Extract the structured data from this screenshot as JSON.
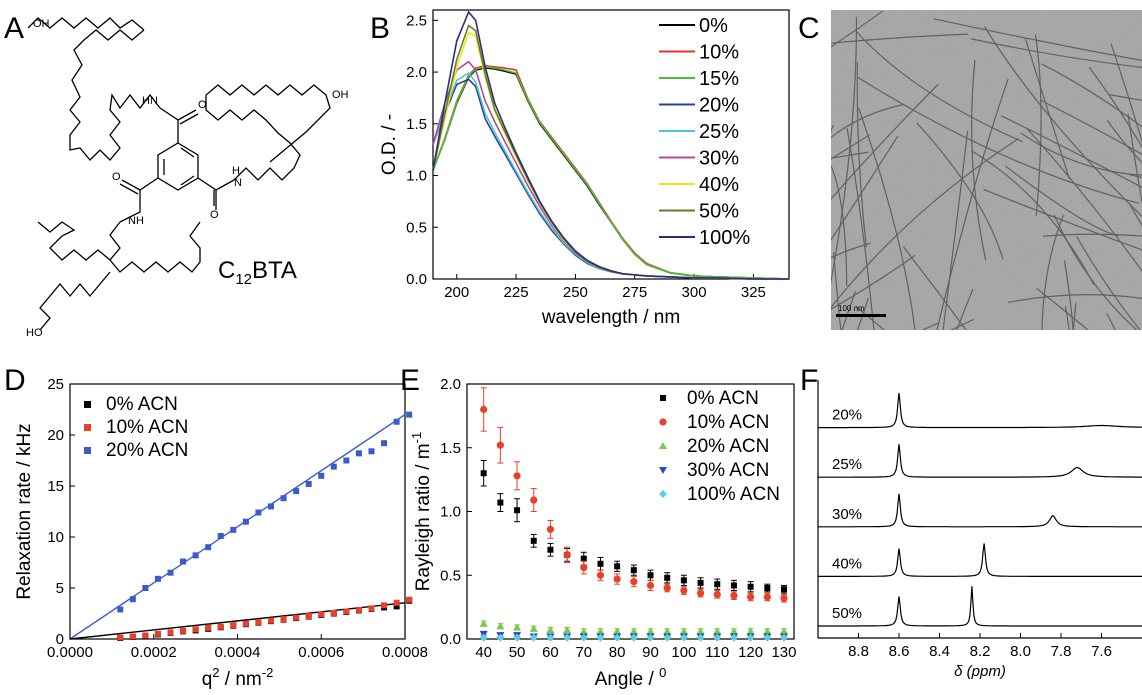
{
  "panels": {
    "A": {
      "letter": "A",
      "compound_name": "C",
      "compound_sub": "12",
      "compound_suffix": "BTA",
      "atom_labels": {
        "oh1": "OH",
        "oh2": "OH",
        "ho": "HO",
        "hn": "HN",
        "nh": "NH",
        "h": "H",
        "n": "N",
        "o": "O"
      }
    },
    "B": {
      "letter": "B"
    },
    "C": {
      "letter": "C",
      "scale_bar": "100 nm"
    },
    "D": {
      "letter": "D"
    },
    "E": {
      "letter": "E"
    },
    "F": {
      "letter": "F"
    }
  },
  "colors": {
    "black": "#000000",
    "red": "#e8302a",
    "green": "#4cbf3a",
    "blue": "#2d3f9e",
    "cyan": "#48c8d8",
    "magenta": "#b04a9e",
    "yellow": "#e8e820",
    "olive": "#6b7a2a",
    "navy": "#2a3080",
    "scatter_blue": "#3a5bc8",
    "scatter_red": "#e8402a",
    "scatter_green": "#7ac84a",
    "scatter_navy": "#2a4ab8",
    "scatter_cyan": "#5ad0e8"
  },
  "chart_data": [
    {
      "id": "B",
      "type": "line",
      "xlabel": "wavelength / nm",
      "ylabel": "O.D. / -",
      "xlim": [
        190,
        340
      ],
      "ylim": [
        0,
        2.6
      ],
      "xticks": [
        200,
        225,
        250,
        275,
        300,
        325
      ],
      "yticks": [
        0.0,
        0.5,
        1.0,
        1.5,
        2.0,
        2.5
      ],
      "legend_position": "top-right",
      "x": [
        190,
        195,
        200,
        205,
        208,
        212,
        216,
        220,
        225,
        230,
        235,
        240,
        245,
        250,
        255,
        260,
        265,
        270,
        275,
        280,
        290,
        300,
        310,
        325,
        340
      ],
      "series": [
        {
          "name": "0%",
          "color": "#000000",
          "values": [
            1.05,
            1.35,
            1.7,
            1.95,
            2.02,
            2.04,
            2.03,
            2.01,
            1.98,
            1.72,
            1.5,
            1.35,
            1.2,
            1.05,
            0.9,
            0.72,
            0.55,
            0.38,
            0.24,
            0.14,
            0.06,
            0.03,
            0.02,
            0.01,
            0.0
          ]
        },
        {
          "name": "10%",
          "color": "#e8302a",
          "values": [
            1.05,
            1.36,
            1.72,
            1.97,
            2.04,
            2.06,
            2.05,
            2.04,
            2.02,
            1.74,
            1.52,
            1.37,
            1.22,
            1.07,
            0.92,
            0.74,
            0.56,
            0.39,
            0.25,
            0.15,
            0.06,
            0.03,
            0.02,
            0.01,
            0.0
          ]
        },
        {
          "name": "15%",
          "color": "#4cbf3a",
          "values": [
            1.05,
            1.35,
            1.71,
            1.96,
            2.03,
            2.05,
            2.04,
            2.02,
            1.99,
            1.73,
            1.51,
            1.36,
            1.21,
            1.06,
            0.91,
            0.73,
            0.55,
            0.38,
            0.24,
            0.14,
            0.06,
            0.03,
            0.02,
            0.01,
            0.0
          ]
        },
        {
          "name": "20%",
          "color": "#2d3f9e",
          "values": [
            1.3,
            1.6,
            1.88,
            1.93,
            1.86,
            1.55,
            1.38,
            1.22,
            1.02,
            0.82,
            0.63,
            0.47,
            0.34,
            0.23,
            0.15,
            0.1,
            0.07,
            0.05,
            0.04,
            0.03,
            0.02,
            0.01,
            0.01,
            0.0,
            0.0
          ]
        },
        {
          "name": "25%",
          "color": "#48c8d8",
          "values": [
            1.3,
            1.62,
            1.92,
            1.99,
            1.9,
            1.6,
            1.42,
            1.25,
            1.04,
            0.84,
            0.65,
            0.49,
            0.35,
            0.24,
            0.16,
            0.1,
            0.07,
            0.05,
            0.04,
            0.03,
            0.02,
            0.01,
            0.01,
            0.0,
            0.0
          ]
        },
        {
          "name": "30%",
          "color": "#b04a9e",
          "values": [
            1.3,
            1.7,
            2.02,
            2.1,
            2.02,
            1.72,
            1.52,
            1.34,
            1.12,
            0.9,
            0.7,
            0.52,
            0.37,
            0.25,
            0.17,
            0.11,
            0.07,
            0.05,
            0.04,
            0.03,
            0.02,
            0.01,
            0.01,
            0.0,
            0.0
          ]
        },
        {
          "name": "40%",
          "color": "#e8e820",
          "values": [
            1.05,
            1.55,
            2.05,
            2.38,
            2.35,
            1.95,
            1.62,
            1.42,
            1.18,
            0.95,
            0.73,
            0.54,
            0.38,
            0.26,
            0.17,
            0.11,
            0.07,
            0.05,
            0.04,
            0.03,
            0.02,
            0.01,
            0.01,
            0.0,
            0.0
          ]
        },
        {
          "name": "50%",
          "color": "#6b7a2a",
          "values": [
            1.05,
            1.6,
            2.12,
            2.45,
            2.4,
            1.98,
            1.64,
            1.44,
            1.2,
            0.96,
            0.74,
            0.55,
            0.39,
            0.26,
            0.17,
            0.11,
            0.07,
            0.05,
            0.04,
            0.03,
            0.02,
            0.01,
            0.01,
            0.0,
            0.0
          ]
        },
        {
          "name": "100%",
          "color": "#2a3080",
          "values": [
            1.05,
            1.7,
            2.3,
            2.58,
            2.5,
            2.05,
            1.7,
            1.48,
            1.22,
            0.98,
            0.75,
            0.56,
            0.4,
            0.27,
            0.18,
            0.12,
            0.08,
            0.05,
            0.04,
            0.03,
            0.02,
            0.01,
            0.01,
            0.0,
            0.0
          ]
        }
      ]
    },
    {
      "id": "D",
      "type": "scatter",
      "xlabel": "q",
      "xlabel_sup": "2",
      "xlabel_suffix": " / nm",
      "xlabel_unit_sup": "-2",
      "ylabel": "Relaxation rate / kHz",
      "xlim": [
        0,
        0.0008
      ],
      "ylim": [
        0,
        25
      ],
      "xticks": [
        "0.0000",
        "0.0002",
        "0.0004",
        "0.0006",
        "0.0008"
      ],
      "xtick_values": [
        0,
        0.0002,
        0.0004,
        0.0006,
        0.0008
      ],
      "yticks": [
        0,
        5,
        10,
        15,
        20,
        25
      ],
      "legend_position": "top-left",
      "fit_lines": [
        {
          "color": "#3a5bc8",
          "x": [
            0,
            0.0008
          ],
          "y": [
            0,
            22.0
          ]
        },
        {
          "color": "#000000",
          "x": [
            0,
            0.0008
          ],
          "y": [
            -0.55,
            3.55
          ]
        }
      ],
      "series": [
        {
          "name": "0% ACN",
          "color": "#000000",
          "x": [
            0.00012,
            0.00015,
            0.00018,
            0.00021,
            0.00024,
            0.00027,
            0.0003,
            0.00033,
            0.00036,
            0.00039,
            0.00042,
            0.00045,
            0.00048,
            0.00051,
            0.00054,
            0.00057,
            0.0006,
            0.00063,
            0.00066,
            0.00069,
            0.00072,
            0.00075,
            0.00078,
            0.00081
          ],
          "y": [
            0.1,
            0.2,
            0.3,
            0.45,
            0.6,
            0.75,
            0.85,
            1.0,
            1.15,
            1.3,
            1.45,
            1.6,
            1.75,
            1.9,
            2.05,
            2.2,
            2.35,
            2.5,
            2.65,
            2.8,
            2.95,
            3.1,
            3.2,
            3.75
          ]
        },
        {
          "name": "10% ACN",
          "color": "#e8402a",
          "x": [
            0.00012,
            0.00015,
            0.00018,
            0.00021,
            0.00024,
            0.00027,
            0.0003,
            0.00033,
            0.00036,
            0.00039,
            0.00042,
            0.00045,
            0.00048,
            0.00051,
            0.00054,
            0.00057,
            0.0006,
            0.00063,
            0.00066,
            0.00069,
            0.00072,
            0.00075,
            0.00078,
            0.00081
          ],
          "y": [
            0.15,
            0.25,
            0.35,
            0.5,
            0.65,
            0.8,
            0.95,
            1.1,
            1.2,
            1.35,
            1.5,
            1.65,
            1.8,
            1.95,
            2.1,
            2.25,
            2.4,
            2.55,
            2.7,
            2.85,
            3.0,
            3.3,
            3.55,
            3.85
          ]
        },
        {
          "name": "20% ACN",
          "color": "#3a5bc8",
          "x": [
            0.00012,
            0.00015,
            0.00018,
            0.00021,
            0.00024,
            0.00027,
            0.0003,
            0.00033,
            0.00036,
            0.00039,
            0.00042,
            0.00045,
            0.00048,
            0.00051,
            0.00054,
            0.00057,
            0.0006,
            0.00063,
            0.00066,
            0.00069,
            0.00072,
            0.00075,
            0.00078,
            0.00081
          ],
          "y": [
            2.9,
            3.9,
            5.0,
            5.9,
            6.5,
            7.6,
            8.2,
            9.0,
            10.1,
            10.7,
            11.5,
            12.4,
            13.0,
            13.8,
            14.5,
            15.2,
            16.0,
            16.9,
            17.5,
            18.2,
            18.4,
            19.2,
            21.3,
            22.0
          ]
        }
      ]
    },
    {
      "id": "E",
      "type": "scatter",
      "xlabel": "Angle / ",
      "xlabel_sup": "0",
      "ylabel": "Rayleigh ratio / m",
      "ylabel_sup": "-1",
      "xlim": [
        35,
        133
      ],
      "ylim": [
        0,
        2.0
      ],
      "xticks": [
        40,
        50,
        60,
        70,
        80,
        90,
        100,
        110,
        120,
        130
      ],
      "yticks": [
        0.0,
        0.5,
        1.0,
        1.5,
        2.0
      ],
      "legend_position": "top-right",
      "series": [
        {
          "name": "0% ACN",
          "color": "#000000",
          "marker": "square",
          "x": [
            40,
            45,
            50,
            55,
            60,
            65,
            70,
            75,
            80,
            85,
            90,
            95,
            100,
            105,
            110,
            115,
            120,
            125,
            130
          ],
          "y": [
            1.3,
            1.07,
            1.01,
            0.77,
            0.7,
            0.66,
            0.63,
            0.59,
            0.57,
            0.54,
            0.5,
            0.48,
            0.46,
            0.44,
            0.43,
            0.42,
            0.41,
            0.4,
            0.39
          ],
          "err": [
            0.1,
            0.07,
            0.09,
            0.05,
            0.05,
            0.05,
            0.05,
            0.05,
            0.04,
            0.04,
            0.04,
            0.04,
            0.04,
            0.04,
            0.04,
            0.04,
            0.04,
            0.03,
            0.03
          ]
        },
        {
          "name": "10% ACN",
          "color": "#e8402a",
          "marker": "circle",
          "x": [
            40,
            45,
            50,
            55,
            60,
            65,
            70,
            75,
            80,
            85,
            90,
            95,
            100,
            105,
            110,
            115,
            120,
            125,
            130
          ],
          "y": [
            1.8,
            1.52,
            1.28,
            1.09,
            0.86,
            0.66,
            0.56,
            0.5,
            0.47,
            0.45,
            0.42,
            0.4,
            0.38,
            0.36,
            0.35,
            0.34,
            0.33,
            0.33,
            0.32
          ],
          "err": [
            0.17,
            0.14,
            0.11,
            0.09,
            0.07,
            0.06,
            0.05,
            0.04,
            0.04,
            0.04,
            0.04,
            0.03,
            0.03,
            0.03,
            0.03,
            0.03,
            0.03,
            0.03,
            0.03
          ]
        },
        {
          "name": "20% ACN",
          "color": "#7ac84a",
          "marker": "triangle-up",
          "x": [
            40,
            45,
            50,
            55,
            60,
            65,
            70,
            75,
            80,
            85,
            90,
            95,
            100,
            105,
            110,
            115,
            120,
            125,
            130
          ],
          "y": [
            0.12,
            0.1,
            0.09,
            0.08,
            0.07,
            0.07,
            0.06,
            0.06,
            0.06,
            0.06,
            0.06,
            0.06,
            0.06,
            0.06,
            0.06,
            0.06,
            0.06,
            0.06,
            0.06
          ],
          "err": [
            0.02,
            0.02,
            0.02,
            0.02,
            0.02,
            0.02,
            0.02,
            0.02,
            0.02,
            0.02,
            0.02,
            0.02,
            0.02,
            0.02,
            0.02,
            0.02,
            0.02,
            0.02,
            0.02
          ]
        },
        {
          "name": "30% ACN",
          "color": "#2a4ab8",
          "marker": "triangle-down",
          "x": [
            40,
            45,
            50,
            55,
            60,
            65,
            70,
            75,
            80,
            85,
            90,
            95,
            100,
            105,
            110,
            115,
            120,
            125,
            130
          ],
          "y": [
            0.04,
            0.03,
            0.03,
            0.02,
            0.02,
            0.02,
            0.02,
            0.02,
            0.02,
            0.02,
            0.02,
            0.02,
            0.02,
            0.02,
            0.02,
            0.02,
            0.02,
            0.02,
            0.02
          ],
          "err": [
            0.01,
            0.01,
            0.01,
            0.01,
            0.01,
            0.01,
            0.01,
            0.01,
            0.01,
            0.01,
            0.01,
            0.01,
            0.01,
            0.01,
            0.01,
            0.01,
            0.01,
            0.01,
            0.01
          ]
        },
        {
          "name": "100% ACN",
          "color": "#5ad0e8",
          "marker": "diamond",
          "x": [
            40,
            45,
            50,
            55,
            60,
            65,
            70,
            75,
            80,
            85,
            90,
            95,
            100,
            105,
            110,
            115,
            120,
            125,
            130
          ],
          "y": [
            0.01,
            0.01,
            0.01,
            0.01,
            0.01,
            0.01,
            0.01,
            0.01,
            0.01,
            0.01,
            0.01,
            0.01,
            0.01,
            0.01,
            0.01,
            0.01,
            0.01,
            0.01,
            0.01
          ],
          "err": [
            0,
            0,
            0,
            0,
            0,
            0,
            0,
            0,
            0,
            0,
            0,
            0,
            0,
            0,
            0,
            0,
            0,
            0,
            0
          ]
        }
      ]
    },
    {
      "id": "F",
      "type": "line",
      "xlabel": "δ (ppm)",
      "xlim": [
        9.0,
        7.4
      ],
      "xaxis_reversed": true,
      "xticks": [
        "8.8",
        "8.6",
        "8.4",
        "8.2",
        "8.0",
        "7.8",
        "7.6"
      ],
      "xtick_values": [
        8.8,
        8.6,
        8.4,
        8.2,
        8.0,
        7.8,
        7.6
      ],
      "series": [
        {
          "name": "20%",
          "peaks": [
            {
              "ppm": 8.6,
              "height": 1.0,
              "width": 0.008
            },
            {
              "ppm": 7.6,
              "height": 0.06,
              "width": 0.1
            }
          ]
        },
        {
          "name": "25%",
          "peaks": [
            {
              "ppm": 8.6,
              "height": 0.95,
              "width": 0.008
            },
            {
              "ppm": 7.72,
              "height": 0.28,
              "width": 0.035
            }
          ]
        },
        {
          "name": "30%",
          "peaks": [
            {
              "ppm": 8.6,
              "height": 0.95,
              "width": 0.008
            },
            {
              "ppm": 7.84,
              "height": 0.32,
              "width": 0.02
            }
          ]
        },
        {
          "name": "40%",
          "peaks": [
            {
              "ppm": 8.6,
              "height": 0.8,
              "width": 0.008
            },
            {
              "ppm": 8.18,
              "height": 0.95,
              "width": 0.008
            }
          ]
        },
        {
          "name": "50%",
          "peaks": [
            {
              "ppm": 8.6,
              "height": 0.85,
              "width": 0.008
            },
            {
              "ppm": 8.24,
              "height": 1.15,
              "width": 0.006
            }
          ]
        }
      ]
    }
  ]
}
